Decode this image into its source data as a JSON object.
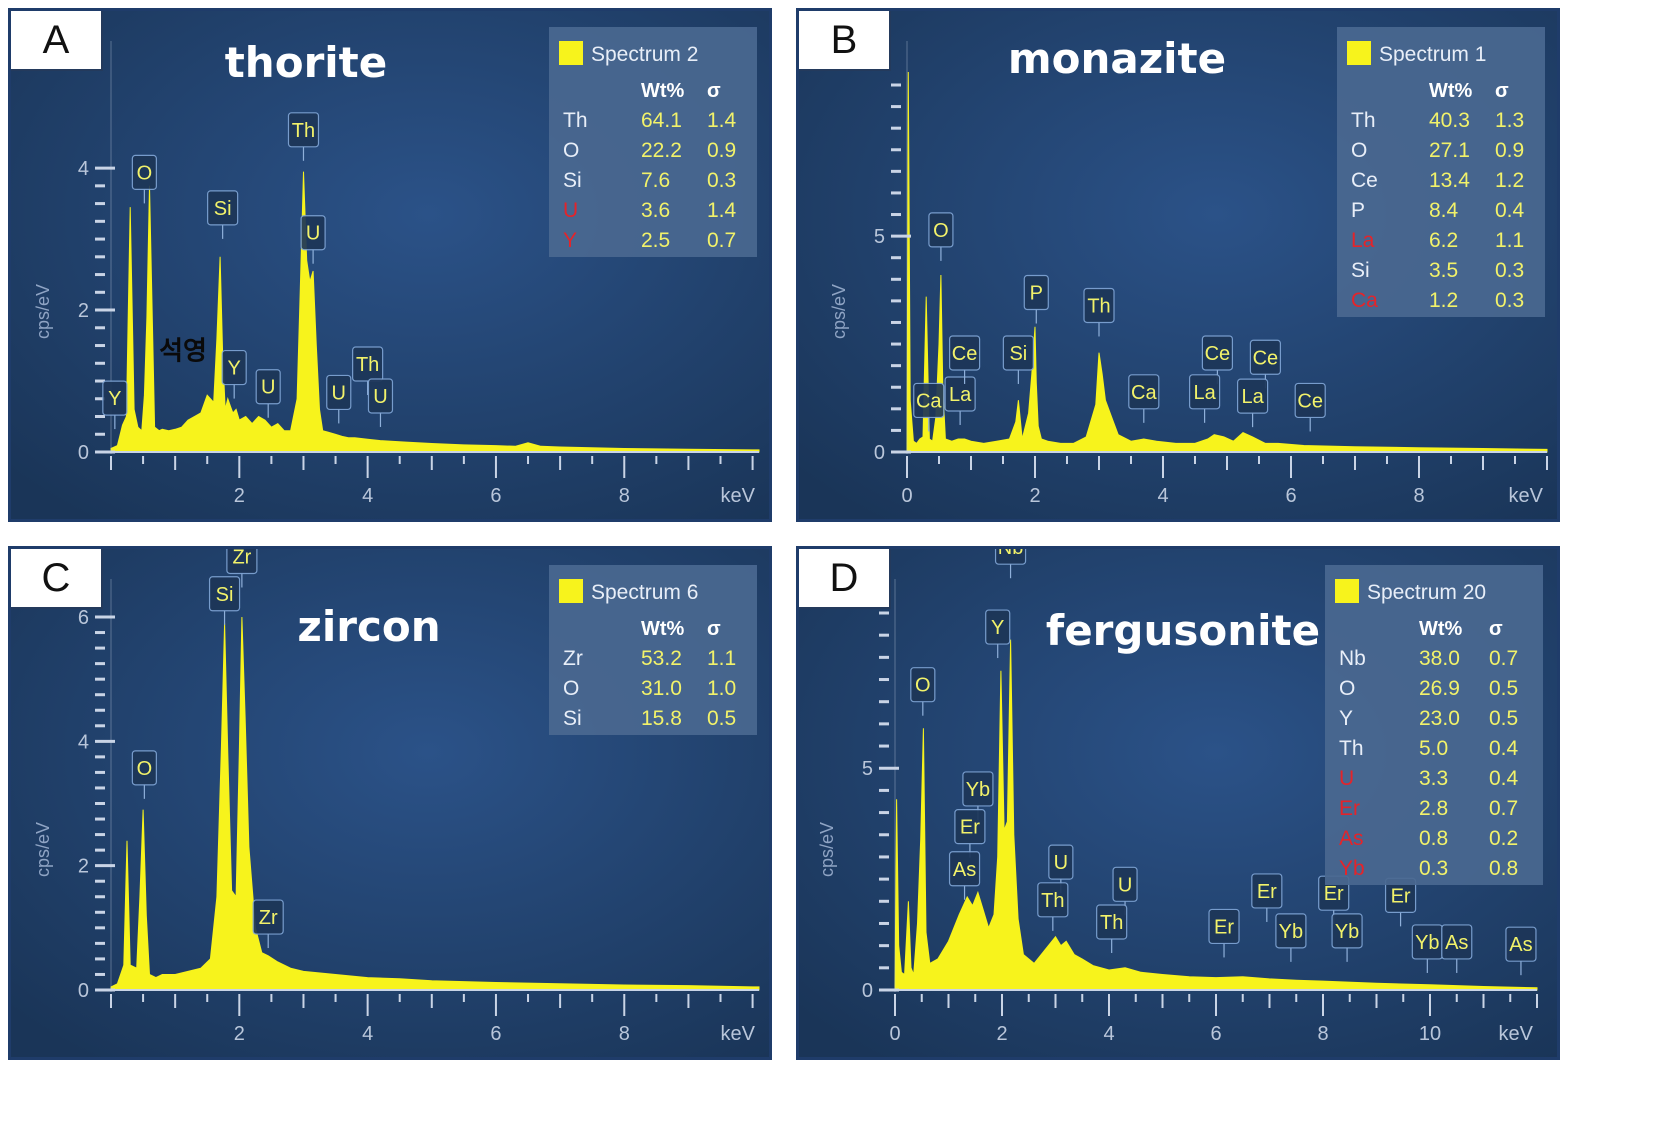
{
  "chart_data": [
    {
      "panel": "A",
      "type": "area",
      "title": "thorite",
      "xlabel": "keV",
      "ylabel": "cps/eV",
      "xlim": [
        0.0,
        10.1
      ],
      "ylim": [
        0,
        4.1
      ],
      "xticks": [
        2,
        4,
        6,
        8
      ],
      "yticks": [
        0,
        2,
        4
      ],
      "series": [
        {
          "name": "Spectrum 2",
          "x": [
            0.0,
            0.1,
            0.18,
            0.24,
            0.3,
            0.36,
            0.42,
            0.48,
            0.52,
            0.56,
            0.6,
            0.68,
            0.75,
            0.8,
            0.9,
            1.0,
            1.1,
            1.2,
            1.3,
            1.4,
            1.5,
            1.6,
            1.65,
            1.7,
            1.74,
            1.78,
            1.82,
            1.86,
            1.9,
            1.95,
            2.0,
            2.1,
            2.2,
            2.3,
            2.4,
            2.5,
            2.6,
            2.7,
            2.8,
            2.9,
            2.95,
            3.0,
            3.05,
            3.1,
            3.15,
            3.2,
            3.25,
            3.3,
            3.38,
            3.5,
            3.6,
            3.7,
            3.8,
            4.0,
            4.2,
            4.4,
            4.6,
            5.0,
            5.5,
            6.0,
            6.3,
            6.5,
            6.7,
            7.0,
            8.0,
            9.0,
            10.0,
            10.1
          ],
          "y": [
            0.05,
            0.09,
            0.38,
            0.5,
            3.45,
            0.6,
            0.35,
            0.3,
            0.8,
            1.9,
            3.75,
            0.35,
            0.3,
            0.32,
            0.3,
            0.32,
            0.35,
            0.45,
            0.5,
            0.55,
            0.8,
            0.7,
            1.6,
            2.75,
            1.4,
            0.6,
            0.75,
            0.65,
            0.55,
            0.6,
            0.45,
            0.5,
            0.4,
            0.5,
            0.45,
            0.35,
            0.4,
            0.3,
            0.3,
            0.75,
            2.3,
            3.95,
            2.7,
            2.4,
            2.55,
            1.5,
            0.6,
            0.3,
            0.28,
            0.25,
            0.22,
            0.2,
            0.2,
            0.18,
            0.16,
            0.15,
            0.14,
            0.12,
            0.1,
            0.09,
            0.08,
            0.13,
            0.08,
            0.07,
            0.05,
            0.04,
            0.03,
            0.03
          ]
        }
      ],
      "peak_labels": [
        {
          "label": "Y",
          "x": 0.06,
          "y": 0.52
        },
        {
          "label": "O",
          "x": 0.52,
          "y": 3.7
        },
        {
          "label": "Si",
          "x": 1.74,
          "y": 3.2
        },
        {
          "label": "Y",
          "x": 1.92,
          "y": 0.95
        },
        {
          "label": "U",
          "x": 2.45,
          "y": 0.68
        },
        {
          "label": "Th",
          "x": 3.0,
          "y": 4.3
        },
        {
          "label": "U",
          "x": 3.15,
          "y": 2.85
        },
        {
          "label": "U",
          "x": 3.55,
          "y": 0.6
        },
        {
          "label": "Th",
          "x": 4.0,
          "y": 1.0
        },
        {
          "label": "U",
          "x": 4.2,
          "y": 0.55
        }
      ],
      "annotations": [
        {
          "text": "석영",
          "x": 0.75,
          "y": 1.3
        }
      ],
      "legend": {
        "title": "Spectrum 2",
        "columns": [
          "",
          "Wt%",
          "σ"
        ],
        "rows": [
          {
            "el": "Th",
            "wt": "64.1",
            "sigma": "1.4",
            "red": false
          },
          {
            "el": "O",
            "wt": "22.2",
            "sigma": "0.9",
            "red": false
          },
          {
            "el": "Si",
            "wt": "7.6",
            "sigma": "0.3",
            "red": false
          },
          {
            "el": "U",
            "wt": "3.6",
            "sigma": "1.4",
            "red": true
          },
          {
            "el": "Y",
            "wt": "2.5",
            "sigma": "0.7",
            "red": true
          }
        ]
      }
    },
    {
      "panel": "B",
      "type": "area",
      "title": "monazite",
      "xlabel": "keV",
      "ylabel": "cps/eV",
      "xlim": [
        0,
        10.0
      ],
      "ylim": [
        0,
        8.5
      ],
      "xticks": [
        0,
        2,
        4,
        6,
        8
      ],
      "yticks": [
        0,
        5
      ],
      "series": [
        {
          "name": "Spectrum 1",
          "x": [
            0.0,
            0.02,
            0.05,
            0.1,
            0.15,
            0.2,
            0.25,
            0.3,
            0.35,
            0.4,
            0.45,
            0.5,
            0.53,
            0.56,
            0.6,
            0.7,
            0.8,
            0.9,
            1.0,
            1.2,
            1.4,
            1.6,
            1.7,
            1.74,
            1.8,
            1.9,
            1.95,
            2.0,
            2.02,
            2.05,
            2.1,
            2.2,
            2.4,
            2.6,
            2.8,
            2.95,
            3.0,
            3.05,
            3.1,
            3.2,
            3.3,
            3.5,
            3.7,
            3.9,
            4.2,
            4.5,
            4.7,
            4.8,
            4.95,
            5.1,
            5.25,
            5.4,
            5.6,
            5.8,
            6.2,
            7.0,
            8.0,
            9.0,
            10.0
          ],
          "y": [
            0.1,
            8.8,
            1.2,
            0.25,
            0.2,
            0.3,
            0.35,
            3.6,
            0.3,
            0.25,
            0.8,
            2.5,
            4.1,
            1.5,
            0.3,
            0.25,
            0.3,
            0.3,
            0.25,
            0.2,
            0.25,
            0.3,
            0.7,
            1.2,
            0.3,
            0.9,
            1.8,
            2.9,
            1.6,
            0.6,
            0.3,
            0.25,
            0.2,
            0.2,
            0.35,
            1.1,
            2.3,
            1.8,
            1.2,
            0.8,
            0.4,
            0.25,
            0.3,
            0.25,
            0.2,
            0.2,
            0.3,
            0.4,
            0.35,
            0.25,
            0.45,
            0.35,
            0.2,
            0.2,
            0.15,
            0.12,
            0.1,
            0.08,
            0.06
          ]
        }
      ],
      "peak_labels": [
        {
          "label": "Ca",
          "x": 0.34,
          "y": 0.8
        },
        {
          "label": "La",
          "x": 0.83,
          "y": 0.95
        },
        {
          "label": "O",
          "x": 0.53,
          "y": 4.75
        },
        {
          "label": "Ce",
          "x": 0.9,
          "y": 1.9
        },
        {
          "label": "Si",
          "x": 1.74,
          "y": 1.9
        },
        {
          "label": "P",
          "x": 2.02,
          "y": 3.3
        },
        {
          "label": "Th",
          "x": 3.0,
          "y": 3.0
        },
        {
          "label": "Ca",
          "x": 3.7,
          "y": 1.0
        },
        {
          "label": "Ce",
          "x": 4.85,
          "y": 1.9
        },
        {
          "label": "La",
          "x": 4.65,
          "y": 1.0
        },
        {
          "label": "Ce",
          "x": 5.6,
          "y": 1.8
        },
        {
          "label": "La",
          "x": 5.4,
          "y": 0.9
        },
        {
          "label": "Ce",
          "x": 6.3,
          "y": 0.8
        }
      ],
      "legend": {
        "title": "Spectrum 1",
        "columns": [
          "",
          "Wt%",
          "σ"
        ],
        "rows": [
          {
            "el": "Th",
            "wt": "40.3",
            "sigma": "1.3",
            "red": false
          },
          {
            "el": "O",
            "wt": "27.1",
            "sigma": "0.9",
            "red": false
          },
          {
            "el": "Ce",
            "wt": "13.4",
            "sigma": "1.2",
            "red": false
          },
          {
            "el": "P",
            "wt": "8.4",
            "sigma": "0.4",
            "red": false
          },
          {
            "el": "La",
            "wt": "6.2",
            "sigma": "1.1",
            "red": true
          },
          {
            "el": "Si",
            "wt": "3.5",
            "sigma": "0.3",
            "red": false
          },
          {
            "el": "Ca",
            "wt": "1.2",
            "sigma": "0.3",
            "red": true
          }
        ]
      }
    },
    {
      "panel": "C",
      "type": "area",
      "title": "zircon",
      "xlabel": "keV",
      "ylabel": "cps/eV",
      "xlim": [
        0.0,
        10.1
      ],
      "ylim": [
        0,
        6.0
      ],
      "xticks": [
        2,
        4,
        6,
        8
      ],
      "yticks": [
        0,
        2,
        4,
        6
      ],
      "series": [
        {
          "name": "Spectrum 6",
          "x": [
            0.0,
            0.1,
            0.2,
            0.25,
            0.3,
            0.4,
            0.45,
            0.5,
            0.55,
            0.6,
            0.7,
            0.8,
            1.0,
            1.2,
            1.4,
            1.55,
            1.65,
            1.72,
            1.77,
            1.82,
            1.88,
            1.95,
            2.0,
            2.04,
            2.09,
            2.15,
            2.25,
            2.35,
            2.45,
            2.6,
            2.8,
            3.0,
            3.5,
            4.0,
            4.5,
            5.0,
            6.0,
            7.0,
            8.0,
            9.0,
            10.0,
            10.1
          ],
          "y": [
            0.05,
            0.1,
            0.4,
            2.4,
            0.4,
            0.35,
            1.5,
            2.9,
            1.2,
            0.25,
            0.2,
            0.25,
            0.25,
            0.3,
            0.35,
            0.5,
            1.5,
            3.9,
            5.9,
            3.8,
            1.6,
            1.5,
            3.8,
            6.0,
            4.4,
            2.3,
            1.0,
            0.6,
            0.55,
            0.45,
            0.35,
            0.3,
            0.25,
            0.2,
            0.18,
            0.15,
            0.12,
            0.1,
            0.08,
            0.07,
            0.05,
            0.05
          ]
        }
      ],
      "peak_labels": [
        {
          "label": "O",
          "x": 0.52,
          "y": 3.3
        },
        {
          "label": "Si",
          "x": 1.77,
          "y": 6.1
        },
        {
          "label": "Zr",
          "x": 2.04,
          "y": 6.7
        },
        {
          "label": "Zr",
          "x": 2.45,
          "y": 0.9
        }
      ],
      "legend": {
        "title": "Spectrum 6",
        "columns": [
          "",
          "Wt%",
          "σ"
        ],
        "rows": [
          {
            "el": "Zr",
            "wt": "53.2",
            "sigma": "1.1",
            "red": false
          },
          {
            "el": "O",
            "wt": "31.0",
            "sigma": "1.0",
            "red": false
          },
          {
            "el": "Si",
            "wt": "15.8",
            "sigma": "0.5",
            "red": false
          }
        ]
      }
    },
    {
      "panel": "D",
      "type": "area",
      "title": "fergusonite",
      "xlabel": "keV",
      "ylabel": "cps/eV",
      "xlim": [
        0,
        12.0
      ],
      "ylim": [
        0,
        8.5
      ],
      "xticks": [
        0,
        2,
        4,
        6,
        8,
        10
      ],
      "yticks": [
        0,
        5
      ],
      "series": [
        {
          "name": "Spectrum 20",
          "x": [
            0.0,
            0.03,
            0.07,
            0.12,
            0.18,
            0.25,
            0.3,
            0.35,
            0.42,
            0.48,
            0.53,
            0.58,
            0.65,
            0.8,
            1.0,
            1.2,
            1.35,
            1.45,
            1.55,
            1.65,
            1.75,
            1.85,
            1.92,
            1.98,
            2.04,
            2.1,
            2.16,
            2.22,
            2.3,
            2.4,
            2.6,
            2.8,
            3.0,
            3.1,
            3.2,
            3.35,
            3.5,
            3.7,
            4.0,
            4.3,
            4.6,
            5.0,
            5.5,
            6.0,
            6.5,
            7.0,
            7.5,
            8.0,
            9.0,
            10.0,
            11.0,
            12.0
          ],
          "y": [
            0.1,
            4.3,
            1.0,
            0.4,
            0.35,
            2.0,
            0.5,
            0.35,
            1.5,
            3.4,
            5.9,
            1.3,
            0.6,
            0.7,
            1.1,
            1.7,
            2.1,
            1.9,
            2.2,
            1.8,
            1.4,
            1.7,
            3.0,
            7.2,
            3.6,
            3.8,
            7.9,
            3.5,
            1.6,
            0.8,
            0.6,
            0.9,
            1.2,
            1.0,
            1.1,
            0.8,
            0.7,
            0.55,
            0.45,
            0.5,
            0.4,
            0.35,
            0.3,
            0.28,
            0.3,
            0.25,
            0.22,
            0.2,
            0.15,
            0.12,
            0.08,
            0.05
          ]
        }
      ],
      "peak_labels": [
        {
          "label": "O",
          "x": 0.52,
          "y": 6.5
        },
        {
          "label": "Y",
          "x": 1.92,
          "y": 7.8
        },
        {
          "label": "Nb",
          "x": 2.16,
          "y": 9.6
        },
        {
          "label": "Yb",
          "x": 1.55,
          "y": 4.15
        },
        {
          "label": "Er",
          "x": 1.4,
          "y": 3.3
        },
        {
          "label": "As",
          "x": 1.3,
          "y": 2.35
        },
        {
          "label": "U",
          "x": 3.1,
          "y": 2.5
        },
        {
          "label": "Th",
          "x": 2.95,
          "y": 1.65
        },
        {
          "label": "U",
          "x": 4.3,
          "y": 2.0
        },
        {
          "label": "Th",
          "x": 4.05,
          "y": 1.15
        },
        {
          "label": "Er",
          "x": 6.15,
          "y": 1.05
        },
        {
          "label": "Er",
          "x": 6.95,
          "y": 1.85
        },
        {
          "label": "Yb",
          "x": 7.4,
          "y": 0.95
        },
        {
          "label": "Er",
          "x": 8.2,
          "y": 1.8
        },
        {
          "label": "Yb",
          "x": 8.45,
          "y": 0.95
        },
        {
          "label": "Er",
          "x": 9.45,
          "y": 1.75
        },
        {
          "label": "Yb",
          "x": 9.95,
          "y": 0.7
        },
        {
          "label": "As",
          "x": 10.5,
          "y": 0.7
        },
        {
          "label": "As",
          "x": 11.7,
          "y": 0.65
        }
      ],
      "legend": {
        "title": "Spectrum 20",
        "columns": [
          "",
          "Wt%",
          "σ"
        ],
        "rows": [
          {
            "el": "Nb",
            "wt": "38.0",
            "sigma": "0.7",
            "red": false
          },
          {
            "el": "O",
            "wt": "26.9",
            "sigma": "0.5",
            "red": false
          },
          {
            "el": "Y",
            "wt": "23.0",
            "sigma": "0.5",
            "red": false
          },
          {
            "el": "Th",
            "wt": "5.0",
            "sigma": "0.4",
            "red": false
          },
          {
            "el": "U",
            "wt": "3.3",
            "sigma": "0.4",
            "red": true
          },
          {
            "el": "Er",
            "wt": "2.8",
            "sigma": "0.7",
            "red": true
          },
          {
            "el": "As",
            "wt": "0.8",
            "sigma": "0.2",
            "red": true
          },
          {
            "el": "Yb",
            "wt": "0.3",
            "sigma": "0.8",
            "red": true
          }
        ]
      }
    }
  ],
  "colors": {
    "spectrum": "#f7f31c",
    "background_dark": "#1a3558",
    "background_light": "#2b5288",
    "legend_bg": "#4a6890",
    "red_element": "#e4242a"
  }
}
